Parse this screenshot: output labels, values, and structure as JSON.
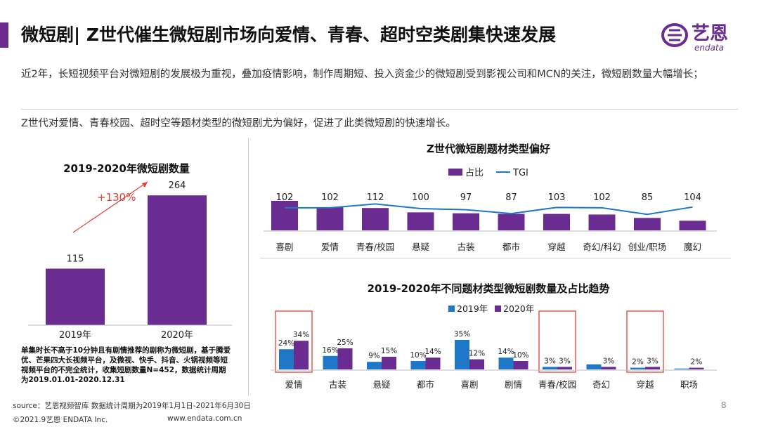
{
  "header": {
    "title": "微短剧| Z世代催生微短剧市场向爱情、青春、超时空类剧集快速发展",
    "logo_text": "艺恩",
    "logo_sub": "endata"
  },
  "paragraphs": [
    "近2年，长短视频平台对微短剧的发展极为重视，叠加疫情影响，制作周期短、投入资金少的微短剧受到影视公司和MCN的关注，微短剧数量大幅增长；",
    "Z世代对爱情、青春校园、超时空等题材类型的微短剧尤为偏好，促进了此类微短剧的快速增长。"
  ],
  "note": "单集时长不高于10分钟且有剧情推荐的剧称为微短剧，基于腾爱优、芒果四大长视频平台，及微视、快手、抖音、火锅视频等短视频平台的不完全统计，收集短剧数量N=452，数据统计周期为2019.01.01-2020.12.31",
  "footer": {
    "source": "source：艺恩视频智库      数据统计周期为2019年1月1日-2021年6月30日",
    "copyright": "©2021.9艺恩 ENDATA Inc.",
    "website": "www.endata.com.cn",
    "page": "8"
  },
  "colors": {
    "purple": "#6a2c91",
    "blue": "#1f77c8",
    "highlight": "#e0403a",
    "growth": "#e0403a"
  },
  "chart_data": [
    {
      "type": "bar",
      "title": "2019-2020年微短剧数量",
      "categories": [
        "2019年",
        "2020年"
      ],
      "values": [
        115,
        264
      ],
      "annotation": "+130%",
      "ylim": [
        0,
        300
      ]
    },
    {
      "type": "bar",
      "title": "Z世代微短剧题材类型偏好",
      "categories": [
        "喜剧",
        "爱情",
        "青春/校园",
        "悬疑",
        "古装",
        "都市",
        "穿越",
        "奇幻/科幻",
        "创业/职场",
        "魔幻"
      ],
      "series": [
        {
          "name": "占比",
          "values": [
            9.5,
            7.4,
            7.2,
            5.8,
            5.5,
            5.3,
            5.3,
            5.1,
            4.0,
            3.1
          ]
        },
        {
          "name": "TGI",
          "values": [
            102,
            102,
            112,
            100,
            97,
            87,
            103,
            102,
            85,
            104
          ]
        }
      ],
      "data_labels": [
        "102",
        "102",
        "112",
        "100",
        "97",
        "87",
        "103",
        "102",
        "85",
        "104"
      ],
      "legend_position": "top"
    },
    {
      "type": "bar",
      "title": "2019-2020年不同题材类型微短剧数量及占比趋势",
      "categories": [
        "爱情",
        "古装",
        "悬疑",
        "都市",
        "喜剧",
        "剧情",
        "青春/校园",
        "奇幻",
        "穿越",
        "职场"
      ],
      "series": [
        {
          "name": "2019年",
          "values": [
            24,
            16,
            9,
            10,
            35,
            14,
            3,
            6,
            2,
            1
          ]
        },
        {
          "name": "2020年",
          "values": [
            34,
            25,
            15,
            14,
            12,
            10,
            3,
            3,
            3,
            2
          ]
        }
      ],
      "data_labels_2019": [
        "24%",
        "16%",
        "9%",
        "10%",
        "35%",
        "14%",
        "3%",
        "",
        "2%",
        ""
      ],
      "data_labels_2020": [
        "34%",
        "25%",
        "15%",
        "14%",
        "12%",
        "10%",
        "3%",
        "3%",
        "3%",
        "2%"
      ],
      "highlighted_categories": [
        "爱情",
        "青春/校园",
        "穿越"
      ],
      "legend_position": "top"
    }
  ]
}
